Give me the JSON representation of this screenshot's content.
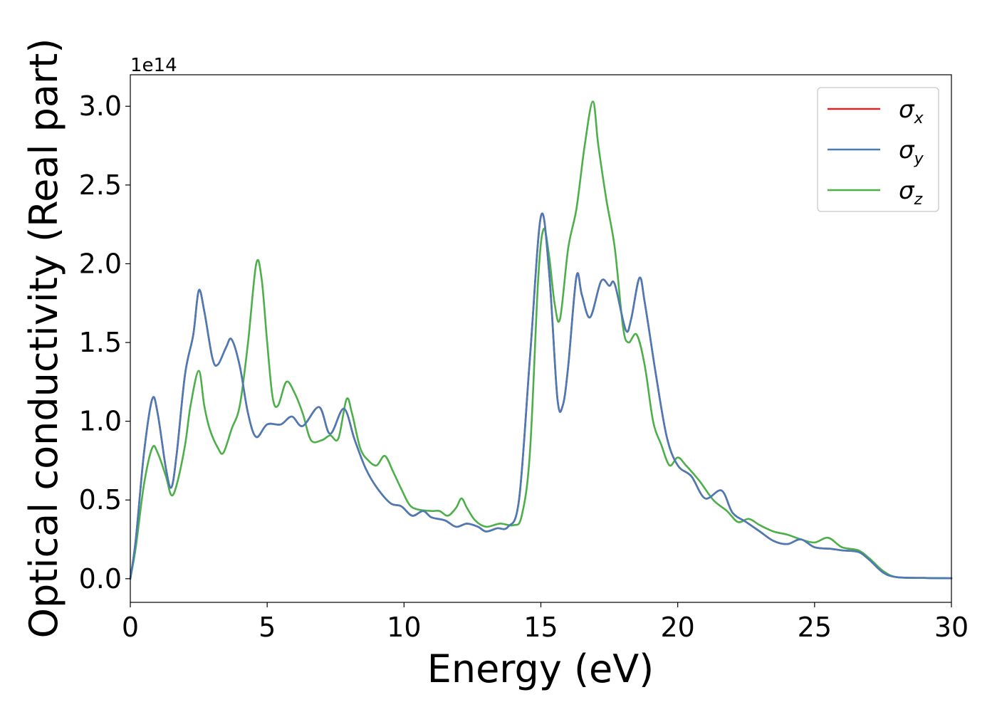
{
  "chart_data": {
    "type": "line",
    "title": "",
    "xlabel": "Energy (eV)",
    "ylabel": "Optical conductivity (Real part)",
    "y_offset_text": "1e14",
    "xlim": [
      0,
      30
    ],
    "ylim": [
      -0.15,
      3.2
    ],
    "y_scale_multiplier": 100000000000000.0,
    "xticks": [
      0,
      5,
      10,
      15,
      20,
      25,
      30
    ],
    "xtick_labels": [
      "0",
      "5",
      "10",
      "15",
      "20",
      "25",
      "30"
    ],
    "yticks": [
      0.0,
      0.5,
      1.0,
      1.5,
      2.0,
      2.5,
      3.0
    ],
    "ytick_labels": [
      "0.0",
      "0.5",
      "1.0",
      "1.5",
      "2.0",
      "2.5",
      "3.0"
    ],
    "grid": false,
    "legend_position": "top-right",
    "series": [
      {
        "legend_base": "σ",
        "legend_sub": "x",
        "color": "#d62728",
        "points": [
          [
            0,
            0
          ],
          [
            0.2,
            0.25
          ],
          [
            0.5,
            0.8
          ],
          [
            0.8,
            1.14
          ],
          [
            1.0,
            1.05
          ],
          [
            1.3,
            0.7
          ],
          [
            1.5,
            0.58
          ],
          [
            1.7,
            0.8
          ],
          [
            2.0,
            1.3
          ],
          [
            2.3,
            1.55
          ],
          [
            2.5,
            1.83
          ],
          [
            2.7,
            1.7
          ],
          [
            3.0,
            1.4
          ],
          [
            3.2,
            1.36
          ],
          [
            3.5,
            1.47
          ],
          [
            3.7,
            1.52
          ],
          [
            4.0,
            1.35
          ],
          [
            4.3,
            1.05
          ],
          [
            4.6,
            0.9
          ],
          [
            5.0,
            0.98
          ],
          [
            5.5,
            0.98
          ],
          [
            5.9,
            1.03
          ],
          [
            6.3,
            0.97
          ],
          [
            6.9,
            1.09
          ],
          [
            7.3,
            0.92
          ],
          [
            7.8,
            1.08
          ],
          [
            8.2,
            0.88
          ],
          [
            8.6,
            0.7
          ],
          [
            9.0,
            0.58
          ],
          [
            9.5,
            0.48
          ],
          [
            9.9,
            0.46
          ],
          [
            10.3,
            0.4
          ],
          [
            10.7,
            0.43
          ],
          [
            11.0,
            0.39
          ],
          [
            11.5,
            0.37
          ],
          [
            11.9,
            0.33
          ],
          [
            12.3,
            0.35
          ],
          [
            12.7,
            0.33
          ],
          [
            13.0,
            0.3
          ],
          [
            13.4,
            0.32
          ],
          [
            13.8,
            0.33
          ],
          [
            14.2,
            0.5
          ],
          [
            14.6,
            1.4
          ],
          [
            15.0,
            2.3
          ],
          [
            15.3,
            1.95
          ],
          [
            15.6,
            1.15
          ],
          [
            15.8,
            1.1
          ],
          [
            16.0,
            1.35
          ],
          [
            16.3,
            1.92
          ],
          [
            16.5,
            1.8
          ],
          [
            16.8,
            1.66
          ],
          [
            17.2,
            1.89
          ],
          [
            17.5,
            1.86
          ],
          [
            17.7,
            1.87
          ],
          [
            18.1,
            1.58
          ],
          [
            18.3,
            1.65
          ],
          [
            18.6,
            1.91
          ],
          [
            18.8,
            1.75
          ],
          [
            19.2,
            1.3
          ],
          [
            19.6,
            0.9
          ],
          [
            20.0,
            0.72
          ],
          [
            20.5,
            0.65
          ],
          [
            21.0,
            0.51
          ],
          [
            21.6,
            0.56
          ],
          [
            22.0,
            0.42
          ],
          [
            22.5,
            0.36
          ],
          [
            23.0,
            0.3
          ],
          [
            23.5,
            0.24
          ],
          [
            24.0,
            0.22
          ],
          [
            24.5,
            0.25
          ],
          [
            25.0,
            0.2
          ],
          [
            25.6,
            0.19
          ],
          [
            26.0,
            0.18
          ],
          [
            26.6,
            0.17
          ],
          [
            27.0,
            0.12
          ],
          [
            27.5,
            0.04
          ],
          [
            28.0,
            0.01
          ],
          [
            29.0,
            0.005
          ],
          [
            30.0,
            0.003
          ]
        ]
      },
      {
        "legend_base": "σ",
        "legend_sub": "y",
        "color": "#4a7bb7",
        "points": [
          [
            0,
            0
          ],
          [
            0.2,
            0.25
          ],
          [
            0.5,
            0.8
          ],
          [
            0.8,
            1.14
          ],
          [
            1.0,
            1.05
          ],
          [
            1.3,
            0.7
          ],
          [
            1.5,
            0.58
          ],
          [
            1.7,
            0.8
          ],
          [
            2.0,
            1.3
          ],
          [
            2.3,
            1.55
          ],
          [
            2.5,
            1.83
          ],
          [
            2.7,
            1.7
          ],
          [
            3.0,
            1.4
          ],
          [
            3.2,
            1.36
          ],
          [
            3.5,
            1.47
          ],
          [
            3.7,
            1.52
          ],
          [
            4.0,
            1.35
          ],
          [
            4.3,
            1.05
          ],
          [
            4.6,
            0.9
          ],
          [
            5.0,
            0.98
          ],
          [
            5.5,
            0.98
          ],
          [
            5.9,
            1.03
          ],
          [
            6.3,
            0.97
          ],
          [
            6.9,
            1.09
          ],
          [
            7.3,
            0.92
          ],
          [
            7.8,
            1.08
          ],
          [
            8.2,
            0.88
          ],
          [
            8.6,
            0.7
          ],
          [
            9.0,
            0.58
          ],
          [
            9.5,
            0.48
          ],
          [
            9.9,
            0.46
          ],
          [
            10.3,
            0.4
          ],
          [
            10.7,
            0.43
          ],
          [
            11.0,
            0.39
          ],
          [
            11.5,
            0.37
          ],
          [
            11.9,
            0.33
          ],
          [
            12.3,
            0.35
          ],
          [
            12.7,
            0.33
          ],
          [
            13.0,
            0.3
          ],
          [
            13.4,
            0.32
          ],
          [
            13.8,
            0.33
          ],
          [
            14.2,
            0.5
          ],
          [
            14.6,
            1.4
          ],
          [
            15.0,
            2.3
          ],
          [
            15.3,
            1.95
          ],
          [
            15.6,
            1.15
          ],
          [
            15.8,
            1.1
          ],
          [
            16.0,
            1.35
          ],
          [
            16.3,
            1.92
          ],
          [
            16.5,
            1.8
          ],
          [
            16.8,
            1.66
          ],
          [
            17.2,
            1.89
          ],
          [
            17.5,
            1.86
          ],
          [
            17.7,
            1.87
          ],
          [
            18.1,
            1.58
          ],
          [
            18.3,
            1.65
          ],
          [
            18.6,
            1.91
          ],
          [
            18.8,
            1.75
          ],
          [
            19.2,
            1.3
          ],
          [
            19.6,
            0.9
          ],
          [
            20.0,
            0.72
          ],
          [
            20.5,
            0.65
          ],
          [
            21.0,
            0.51
          ],
          [
            21.6,
            0.56
          ],
          [
            22.0,
            0.42
          ],
          [
            22.5,
            0.36
          ],
          [
            23.0,
            0.3
          ],
          [
            23.5,
            0.24
          ],
          [
            24.0,
            0.22
          ],
          [
            24.5,
            0.25
          ],
          [
            25.0,
            0.2
          ],
          [
            25.6,
            0.19
          ],
          [
            26.0,
            0.18
          ],
          [
            26.6,
            0.17
          ],
          [
            27.0,
            0.12
          ],
          [
            27.5,
            0.04
          ],
          [
            28.0,
            0.01
          ],
          [
            29.0,
            0.005
          ],
          [
            30.0,
            0.003
          ]
        ]
      },
      {
        "legend_base": "σ",
        "legend_sub": "z",
        "color": "#4daf4a",
        "points": [
          [
            0,
            0
          ],
          [
            0.2,
            0.2
          ],
          [
            0.5,
            0.6
          ],
          [
            0.8,
            0.83
          ],
          [
            1.0,
            0.8
          ],
          [
            1.3,
            0.65
          ],
          [
            1.5,
            0.53
          ],
          [
            1.7,
            0.6
          ],
          [
            2.0,
            0.85
          ],
          [
            2.2,
            1.1
          ],
          [
            2.5,
            1.32
          ],
          [
            2.7,
            1.1
          ],
          [
            2.9,
            0.95
          ],
          [
            3.2,
            0.83
          ],
          [
            3.4,
            0.8
          ],
          [
            3.7,
            0.95
          ],
          [
            4.0,
            1.1
          ],
          [
            4.3,
            1.5
          ],
          [
            4.6,
            2.0
          ],
          [
            4.8,
            1.9
          ],
          [
            5.0,
            1.5
          ],
          [
            5.2,
            1.15
          ],
          [
            5.4,
            1.1
          ],
          [
            5.7,
            1.25
          ],
          [
            6.0,
            1.18
          ],
          [
            6.3,
            1.05
          ],
          [
            6.6,
            0.88
          ],
          [
            7.0,
            0.88
          ],
          [
            7.3,
            0.91
          ],
          [
            7.6,
            0.89
          ],
          [
            7.9,
            1.14
          ],
          [
            8.1,
            1.05
          ],
          [
            8.4,
            0.83
          ],
          [
            8.7,
            0.75
          ],
          [
            9.0,
            0.72
          ],
          [
            9.3,
            0.78
          ],
          [
            9.6,
            0.68
          ],
          [
            9.9,
            0.57
          ],
          [
            10.2,
            0.47
          ],
          [
            10.5,
            0.44
          ],
          [
            11.0,
            0.43
          ],
          [
            11.3,
            0.43
          ],
          [
            11.6,
            0.4
          ],
          [
            11.9,
            0.45
          ],
          [
            12.1,
            0.51
          ],
          [
            12.3,
            0.45
          ],
          [
            12.6,
            0.37
          ],
          [
            13.0,
            0.33
          ],
          [
            13.5,
            0.35
          ],
          [
            14.0,
            0.34
          ],
          [
            14.3,
            0.4
          ],
          [
            14.6,
            0.8
          ],
          [
            14.9,
            1.9
          ],
          [
            15.1,
            2.22
          ],
          [
            15.3,
            2.05
          ],
          [
            15.5,
            1.75
          ],
          [
            15.7,
            1.65
          ],
          [
            16.0,
            2.1
          ],
          [
            16.3,
            2.35
          ],
          [
            16.6,
            2.75
          ],
          [
            16.9,
            3.03
          ],
          [
            17.1,
            2.75
          ],
          [
            17.4,
            2.4
          ],
          [
            17.7,
            2.1
          ],
          [
            18.0,
            1.6
          ],
          [
            18.2,
            1.5
          ],
          [
            18.5,
            1.55
          ],
          [
            18.8,
            1.35
          ],
          [
            19.1,
            1.0
          ],
          [
            19.4,
            0.85
          ],
          [
            19.7,
            0.72
          ],
          [
            20.0,
            0.77
          ],
          [
            20.3,
            0.72
          ],
          [
            20.8,
            0.62
          ],
          [
            21.3,
            0.5
          ],
          [
            21.8,
            0.43
          ],
          [
            22.2,
            0.36
          ],
          [
            22.6,
            0.38
          ],
          [
            23.0,
            0.34
          ],
          [
            23.5,
            0.3
          ],
          [
            24.0,
            0.28
          ],
          [
            24.5,
            0.25
          ],
          [
            25.0,
            0.23
          ],
          [
            25.5,
            0.26
          ],
          [
            26.0,
            0.2
          ],
          [
            26.6,
            0.18
          ],
          [
            27.0,
            0.13
          ],
          [
            27.5,
            0.05
          ],
          [
            28.0,
            0.01
          ],
          [
            29.0,
            0.005
          ],
          [
            30.0,
            0.003
          ]
        ]
      }
    ]
  }
}
